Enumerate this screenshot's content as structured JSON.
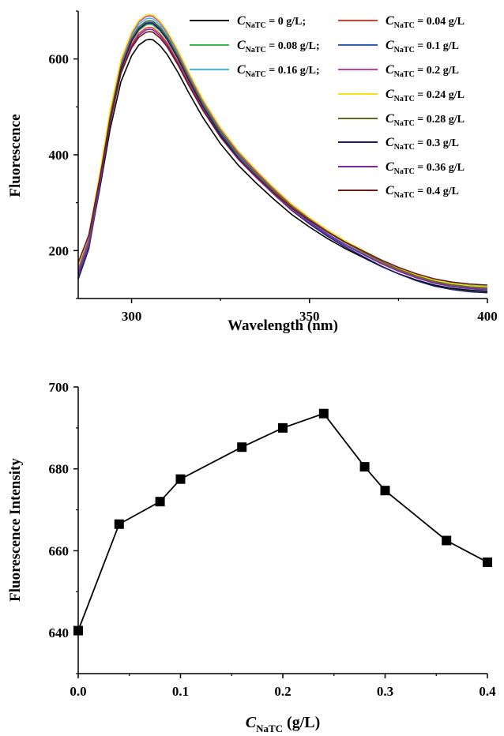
{
  "chart_data": [
    {
      "type": "line",
      "xlabel": "Wavelength (nm)",
      "ylabel": "Fluorescence",
      "xlim": [
        285,
        400
      ],
      "ylim": [
        100,
        700
      ],
      "xticks": [
        300,
        350,
        400
      ],
      "yticks": [
        200,
        400,
        600
      ],
      "x_tick_labels": [
        "300",
        "350",
        "400"
      ],
      "y_tick_labels": [
        "200",
        "400",
        "600"
      ],
      "grid": false,
      "legend_position": "top-right",
      "x": [
        285,
        288,
        291,
        294,
        297,
        300,
        302,
        304,
        305,
        306,
        308,
        310,
        313,
        316,
        320,
        325,
        330,
        335,
        340,
        345,
        350,
        355,
        360,
        365,
        370,
        375,
        380,
        385,
        390,
        395,
        400
      ],
      "series": [
        {
          "c_var": "C",
          "c_sub": "NaTC",
          "label_rest": " = 0 g/L;",
          "color": "#000000",
          "peak": 641,
          "start": 150,
          "end": 115
        },
        {
          "c_var": "C",
          "c_sub": "NaTC",
          "label_rest": " = 0.04 g/L",
          "color": "#e8392d",
          "peak": 666,
          "start": 158,
          "end": 120
        },
        {
          "c_var": "C",
          "c_sub": "NaTC",
          "label_rest": " = 0.08 g/L;",
          "color": "#3cb64a",
          "peak": 672,
          "start": 162,
          "end": 125
        },
        {
          "c_var": "C",
          "c_sub": "NaTC",
          "label_rest": " = 0.1 g/L",
          "color": "#2f5fb3",
          "peak": 677,
          "start": 145,
          "end": 118
        },
        {
          "c_var": "C",
          "c_sub": "NaTC",
          "label_rest": " = 0.16 g/L;",
          "color": "#3fbde3",
          "peak": 685,
          "start": 165,
          "end": 123
        },
        {
          "c_var": "C",
          "c_sub": "NaTC",
          "label_rest": " = 0.2 g/L",
          "color": "#cc3fa8",
          "peak": 690,
          "start": 160,
          "end": 121
        },
        {
          "c_var": "C",
          "c_sub": "NaTC",
          "label_rest": " = 0.24 g/L",
          "color": "#f2e21a",
          "peak": 693,
          "start": 170,
          "end": 124
        },
        {
          "c_var": "C",
          "c_sub": "NaTC",
          "label_rest": " = 0.28 g/L",
          "color": "#5d6b23",
          "peak": 680,
          "start": 155,
          "end": 122
        },
        {
          "c_var": "C",
          "c_sub": "NaTC",
          "label_rest": " = 0.3 g/L",
          "color": "#1c1c6e",
          "peak": 675,
          "start": 140,
          "end": 112
        },
        {
          "c_var": "C",
          "c_sub": "NaTC",
          "label_rest": " = 0.36 g/L",
          "color": "#7a2aa0",
          "peak": 662,
          "start": 150,
          "end": 119
        },
        {
          "c_var": "C",
          "c_sub": "NaTC",
          "label_rest": " = 0.4 g/L",
          "color": "#6b1a1a",
          "peak": 657,
          "start": 175,
          "end": 128
        }
      ]
    },
    {
      "type": "line",
      "marker": "square",
      "ylabel": "Fluorescence Intensity",
      "xlabel_var": "C",
      "xlabel_sub": "NaTC",
      "xlabel_rest": " (g/L)",
      "xlim": [
        0.0,
        0.4
      ],
      "ylim": [
        630,
        700
      ],
      "xticks": [
        0.0,
        0.1,
        0.2,
        0.3,
        0.4
      ],
      "yticks": [
        640,
        660,
        680,
        700
      ],
      "x_tick_labels": [
        "0.0",
        "0.1",
        "0.2",
        "0.3",
        "0.4"
      ],
      "y_tick_labels": [
        "640",
        "660",
        "680",
        "700"
      ],
      "grid": false,
      "x": [
        0.0,
        0.04,
        0.08,
        0.1,
        0.16,
        0.2,
        0.24,
        0.28,
        0.3,
        0.36,
        0.4
      ],
      "y": [
        640.5,
        666.5,
        672.0,
        677.5,
        685.3,
        690.0,
        693.5,
        680.5,
        674.7,
        662.5,
        657.2
      ]
    }
  ]
}
